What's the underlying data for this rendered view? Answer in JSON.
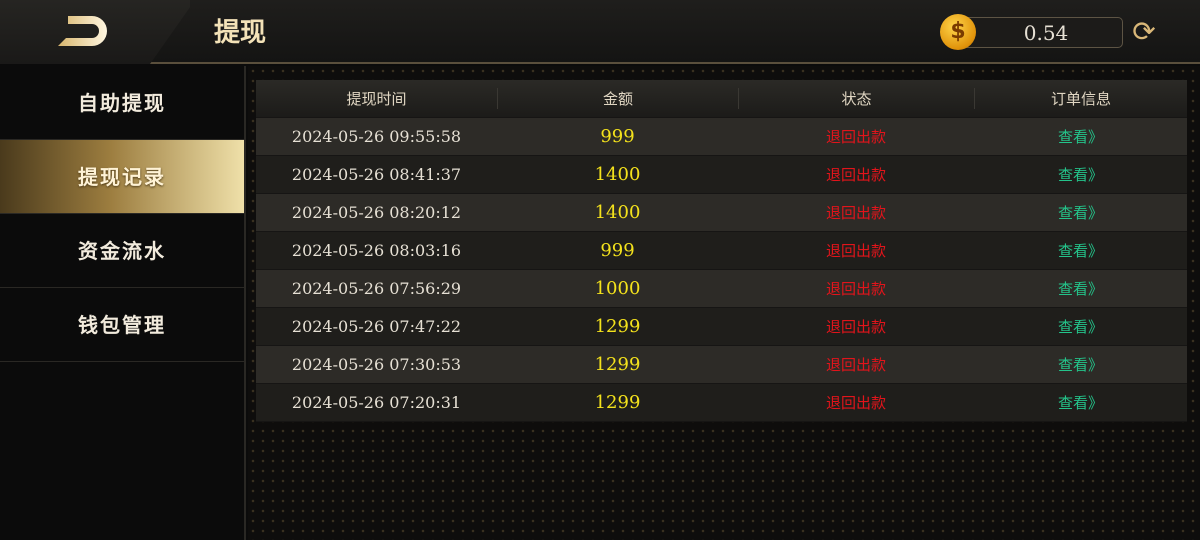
{
  "header": {
    "title": "提现",
    "balance": "0.54",
    "coin_icon": "$",
    "refresh_icon": "⟳"
  },
  "sidebar": {
    "items": [
      {
        "label": "自助提现"
      },
      {
        "label": "提现记录",
        "active": true
      },
      {
        "label": "资金流水"
      },
      {
        "label": "钱包管理"
      }
    ]
  },
  "table": {
    "columns": [
      "提现时间",
      "金额",
      "状态",
      "订单信息"
    ],
    "rows": [
      {
        "time": "2024-05-26 09:55:58",
        "amount": "999",
        "status": "退回出款",
        "action": "查看》"
      },
      {
        "time": "2024-05-26 08:41:37",
        "amount": "1400",
        "status": "退回出款",
        "action": "查看》"
      },
      {
        "time": "2024-05-26 08:20:12",
        "amount": "1400",
        "status": "退回出款",
        "action": "查看》"
      },
      {
        "time": "2024-05-26 08:03:16",
        "amount": "999",
        "status": "退回出款",
        "action": "查看》"
      },
      {
        "time": "2024-05-26 07:56:29",
        "amount": "1000",
        "status": "退回出款",
        "action": "查看》"
      },
      {
        "time": "2024-05-26 07:47:22",
        "amount": "1299",
        "status": "退回出款",
        "action": "查看》"
      },
      {
        "time": "2024-05-26 07:30:53",
        "amount": "1299",
        "status": "退回出款",
        "action": "查看》"
      },
      {
        "time": "2024-05-26 07:20:31",
        "amount": "1299",
        "status": "退回出款",
        "action": "查看》"
      }
    ]
  },
  "colors": {
    "amount": "#f4e21c",
    "status": "#e3141b",
    "action": "#24c38a",
    "accent": "#f3e2b8"
  }
}
